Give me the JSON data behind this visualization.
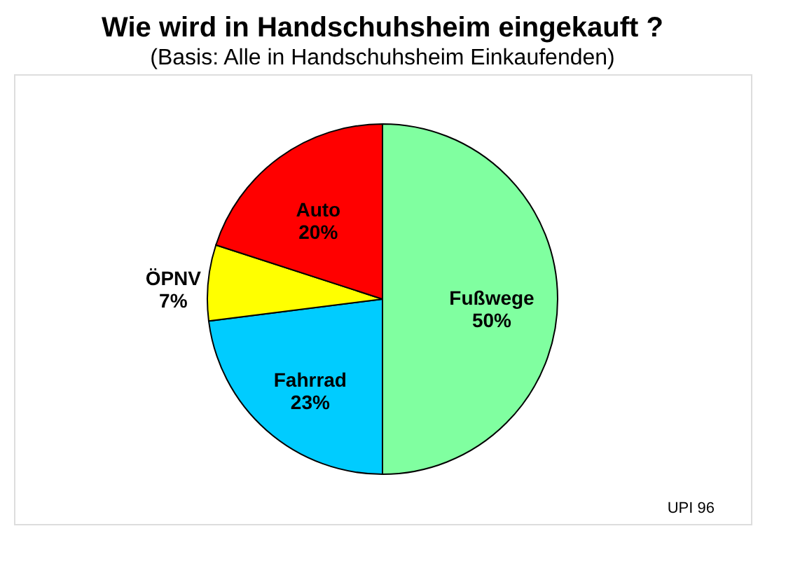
{
  "chart_data": {
    "type": "pie",
    "title": "Wie wird in Handschuhsheim eingekauft ?",
    "subtitle": "(Basis: Alle in Handschuhsheim Einkaufenden)",
    "categories": [
      "Fußwege",
      "Fahrrad",
      "ÖPNV",
      "Auto"
    ],
    "values": [
      50,
      23,
      7,
      20
    ],
    "colors": [
      "#80ffa0",
      "#00ccff",
      "#ffff00",
      "#ff0000"
    ],
    "value_labels": [
      "50%",
      "23%",
      "7%",
      "20%"
    ],
    "annotations": [
      "UPI 96"
    ]
  }
}
